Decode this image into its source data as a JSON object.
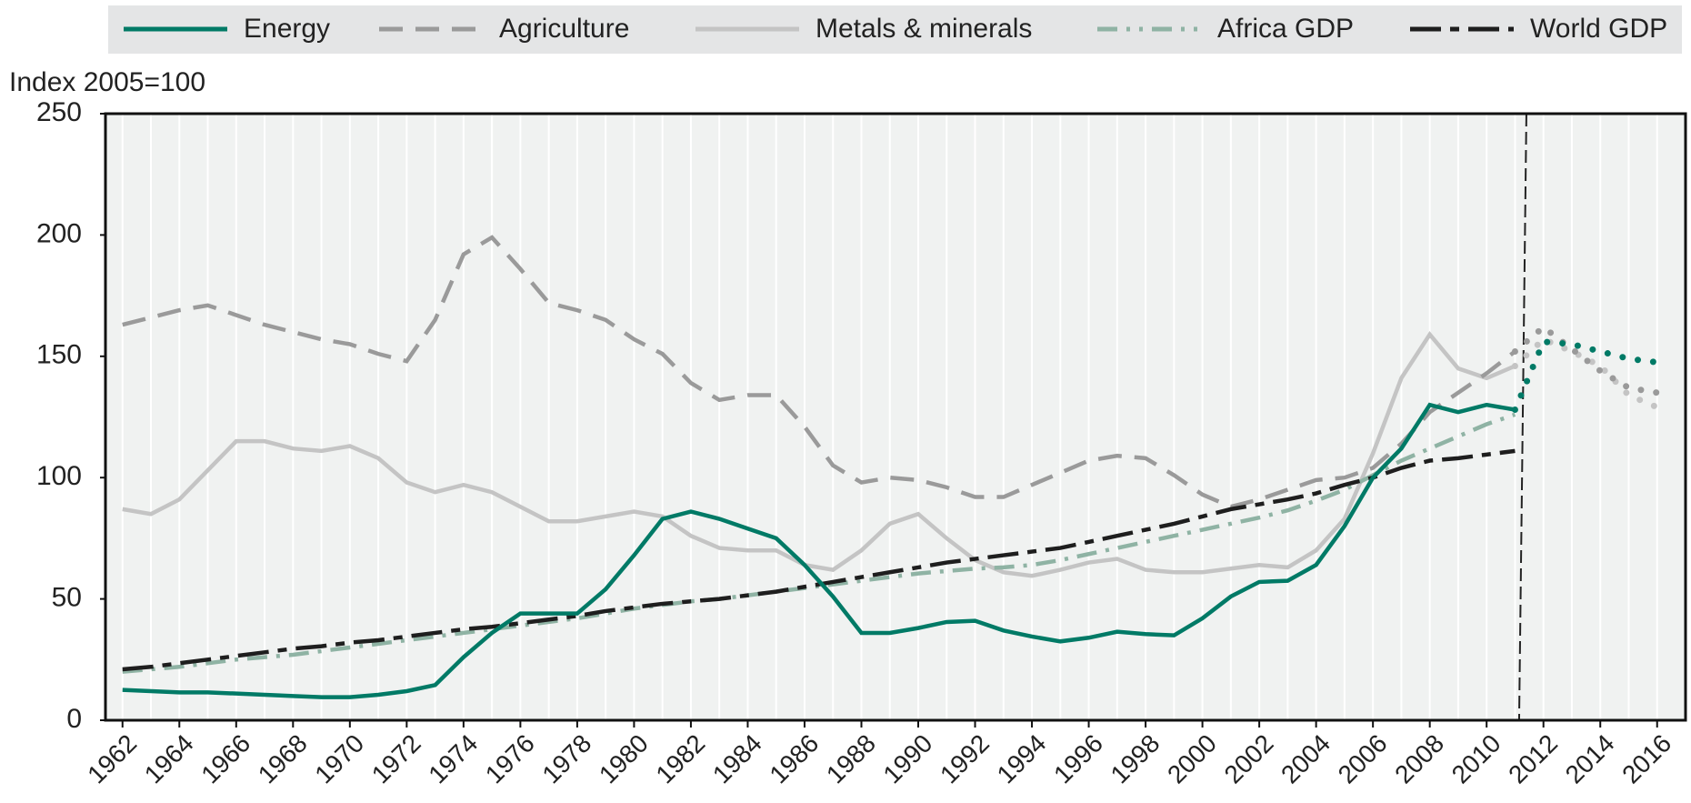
{
  "chart_data": {
    "type": "line",
    "y_axis_label": "Index 2005=100",
    "x": [
      1962,
      1963,
      1964,
      1965,
      1966,
      1967,
      1968,
      1969,
      1970,
      1971,
      1972,
      1973,
      1974,
      1975,
      1976,
      1977,
      1978,
      1979,
      1980,
      1981,
      1982,
      1983,
      1984,
      1985,
      1986,
      1987,
      1988,
      1989,
      1990,
      1991,
      1992,
      1993,
      1994,
      1995,
      1996,
      1997,
      1998,
      1999,
      2000,
      2001,
      2002,
      2003,
      2004,
      2005,
      2006,
      2007,
      2008,
      2009,
      2010,
      2011,
      2012,
      2013,
      2014,
      2015,
      2016
    ],
    "series": [
      {
        "name": "Energy",
        "color": "#007a66",
        "style": "solid",
        "values": [
          12.5,
          12,
          11.5,
          11.5,
          11,
          10.5,
          10,
          9.5,
          9.5,
          10.5,
          12,
          14.5,
          26,
          36,
          44,
          44,
          44,
          54,
          68,
          83,
          86,
          83,
          79,
          75,
          64,
          51,
          36,
          36,
          38,
          40.5,
          41,
          37,
          34.5,
          32.5,
          34,
          36.5,
          35.5,
          35,
          42,
          51,
          57,
          57.5,
          64,
          80,
          100,
          112,
          130,
          127,
          130,
          128,
          156,
          155,
          152,
          149,
          147.5
        ]
      },
      {
        "name": "Agriculture",
        "color": "#9a9a9a",
        "style": "dashed",
        "values": [
          163,
          166,
          169,
          171,
          167,
          163,
          160,
          157,
          155,
          151,
          148,
          165,
          192,
          199,
          186,
          172,
          169,
          165,
          157,
          151,
          139,
          132,
          134,
          134,
          121,
          105,
          98,
          100,
          99,
          96,
          92,
          92,
          97,
          102,
          107,
          109,
          108,
          101,
          93,
          88,
          91,
          95,
          99,
          100,
          104,
          114,
          127,
          135,
          143,
          152,
          162,
          153,
          144,
          137,
          135
        ]
      },
      {
        "name": "Metals & minerals",
        "color": "#c4c4c4",
        "style": "solid",
        "values": [
          87,
          85,
          91,
          103,
          115,
          115,
          112,
          111,
          113,
          108,
          98,
          94,
          97,
          94,
          88,
          82,
          82,
          84,
          86,
          84,
          76,
          71,
          70,
          70,
          64,
          62,
          70,
          81,
          85,
          75,
          66,
          61,
          59.5,
          62,
          65,
          66.5,
          62,
          61,
          61,
          62.5,
          64,
          63,
          70,
          83,
          110,
          141,
          159,
          145,
          141,
          146,
          157,
          152,
          146,
          134,
          129
        ]
      },
      {
        "name": "Africa GDP",
        "color": "#8fb3a4",
        "style": "dashdot",
        "values": [
          20,
          21,
          22,
          23.5,
          25,
          26,
          27,
          28.5,
          30,
          31.5,
          33,
          34.5,
          36,
          37.5,
          39,
          40.5,
          42,
          44,
          46,
          47.5,
          49,
          50,
          51.5,
          53,
          54.5,
          56,
          57.5,
          59,
          60.5,
          61.5,
          62.5,
          63,
          64,
          66,
          68.5,
          71,
          73.5,
          76,
          78.5,
          81,
          83.5,
          86.5,
          90.5,
          95,
          101,
          107,
          112,
          117,
          122,
          126,
          null,
          null,
          null,
          null,
          null
        ]
      },
      {
        "name": "World GDP",
        "color": "#1e1e1e",
        "style": "longdash",
        "values": [
          21,
          22,
          23.5,
          25,
          26.5,
          28,
          29.5,
          30.5,
          32,
          33,
          34.5,
          36,
          37.5,
          38.5,
          40,
          41.5,
          43,
          45,
          46.5,
          48,
          49,
          50,
          51.5,
          53,
          55,
          57,
          59,
          61,
          63,
          65,
          66.5,
          68,
          69.5,
          71,
          73.5,
          76,
          78.5,
          81,
          84,
          87,
          89,
          91,
          93.5,
          97,
          100,
          104,
          107,
          108,
          109.5,
          111,
          null,
          null,
          null,
          null,
          null
        ]
      }
    ],
    "xlim": [
      1961.4,
      2017
    ],
    "xticks": [
      1962,
      1964,
      1966,
      1968,
      1970,
      1972,
      1974,
      1976,
      1978,
      1980,
      1982,
      1984,
      1986,
      1988,
      1990,
      1992,
      1994,
      1996,
      1998,
      2000,
      2002,
      2004,
      2006,
      2008,
      2010,
      2012,
      2014,
      2016
    ],
    "ylim": [
      0,
      250
    ],
    "yticks": [
      0,
      50,
      100,
      150,
      200,
      250
    ],
    "grid": "x",
    "vline": 2011.4,
    "legend": "top"
  }
}
